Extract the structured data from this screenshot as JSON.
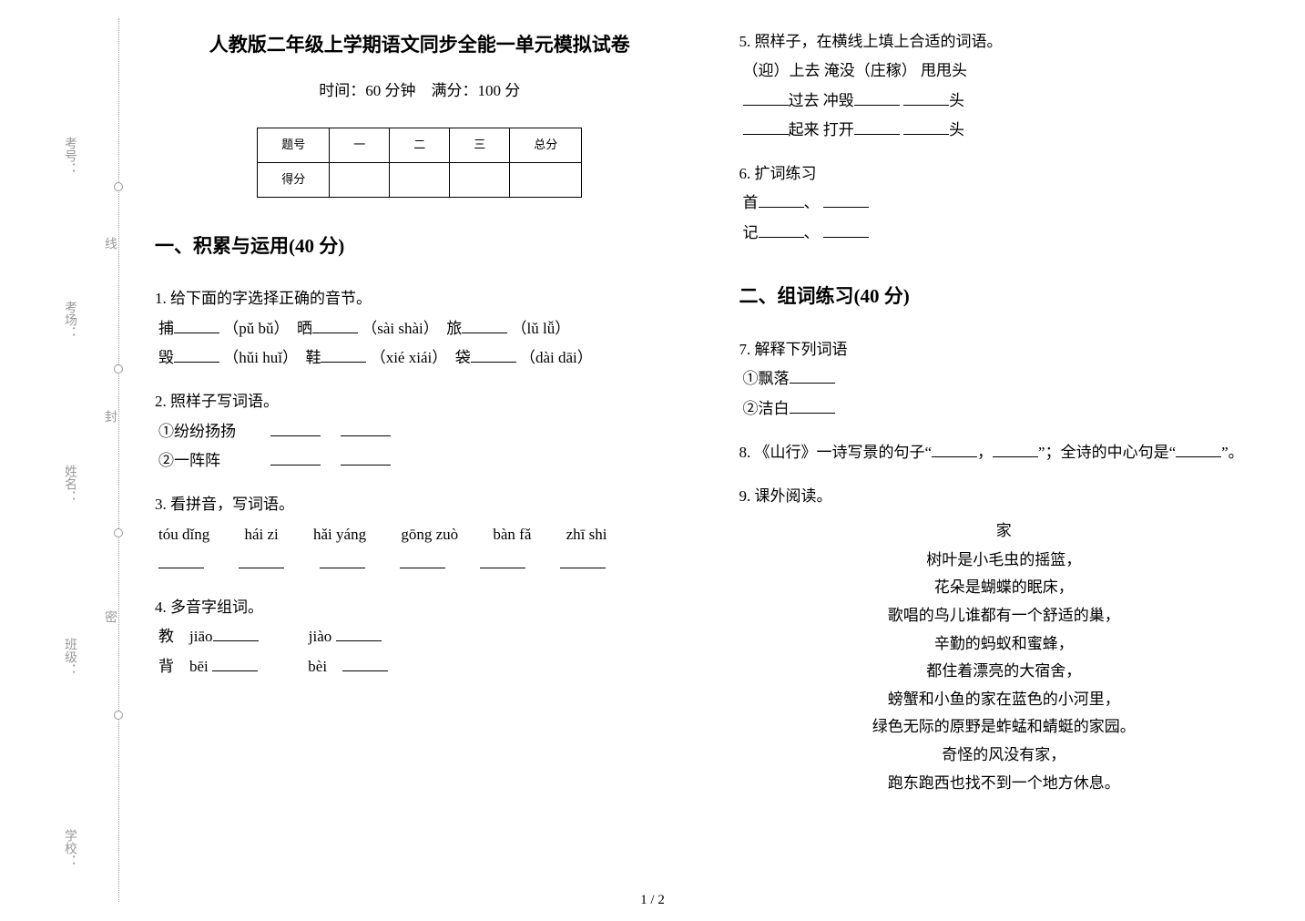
{
  "binding": {
    "school": "学校：",
    "class": "班级：",
    "name": "姓名：",
    "room": "考场：",
    "seat": "考号：",
    "seal1": "密",
    "seal2": "封",
    "seal3": "线"
  },
  "header": {
    "title": "人教版二年级上学期语文同步全能一单元模拟试卷",
    "meta": "时间：60 分钟　满分：100 分",
    "score_header_tihao": "题号",
    "score_header_c1": "一",
    "score_header_c2": "二",
    "score_header_c3": "三",
    "score_header_total": "总分",
    "score_header_defen": "得分"
  },
  "sections": {
    "s1": "一、积累与运用(40 分)",
    "s2": "二、组词练习(40 分)"
  },
  "q1": {
    "stem": "1. 给下面的字选择正确的音节。",
    "l1a": "捕",
    "l1b": "（pǔ bǔ）　晒",
    "l1c": "（sài shài）　旅",
    "l1d": "（lǔ lǚ）",
    "l2a": "毁",
    "l2b": "（hǔi huǐ）　鞋",
    "l2c": "（xié xiái）　袋",
    "l2d": "（dài dāi）"
  },
  "q2": {
    "stem": "2. 照样子写词语。",
    "l1": "①纷纷扬扬",
    "l2": "②一阵阵"
  },
  "q3": {
    "stem": "3. 看拼音，写词语。",
    "p1": "tóu dǐng",
    "p2": "hái zi",
    "p3": "hǎi yáng",
    "p4": "gōng zuò",
    "p5": "bàn fǎ",
    "p6": "zhī shi"
  },
  "q4": {
    "stem": "4. 多音字组词。",
    "l1a": "教　jiāo",
    "l1b": "jiào",
    "l2a": "背　bēi",
    "l2b": "bèi"
  },
  "q5": {
    "stem": "5. 照样子，在横线上填上合适的词语。",
    "l1": "（迎）上去  淹没（庄稼）  甩甩头",
    "l2a": "过去  冲毁",
    "l2b": "头",
    "l3a": "起来  打开",
    "l3b": "头"
  },
  "q6": {
    "stem": "6. 扩词练习",
    "l1": "首",
    "sep": "、",
    "l2": "记"
  },
  "q7": {
    "stem": "7. 解释下列词语",
    "l1": "①飘落",
    "l2": "②洁白"
  },
  "q8": {
    "a": "8. 《山行》一诗写景的句子“",
    "b": "，",
    "c": "”；全诗的中心句是“",
    "d": "”。"
  },
  "q9": {
    "stem": "9. 课外阅读。",
    "title": "家",
    "p1": "树叶是小毛虫的摇篮，",
    "p2": "花朵是蝴蝶的眠床，",
    "p3": "歌唱的鸟儿谁都有一个舒适的巢，",
    "p4": "辛勤的蚂蚁和蜜蜂，",
    "p5": "都住着漂亮的大宿舍，",
    "p6": "螃蟹和小鱼的家在蓝色的小河里，",
    "p7": "绿色无际的原野是蚱蜢和蜻蜓的家园。",
    "p8": "奇怪的风没有家，",
    "p9": "跑东跑西也找不到一个地方休息。"
  },
  "pagenum": "1 / 2"
}
